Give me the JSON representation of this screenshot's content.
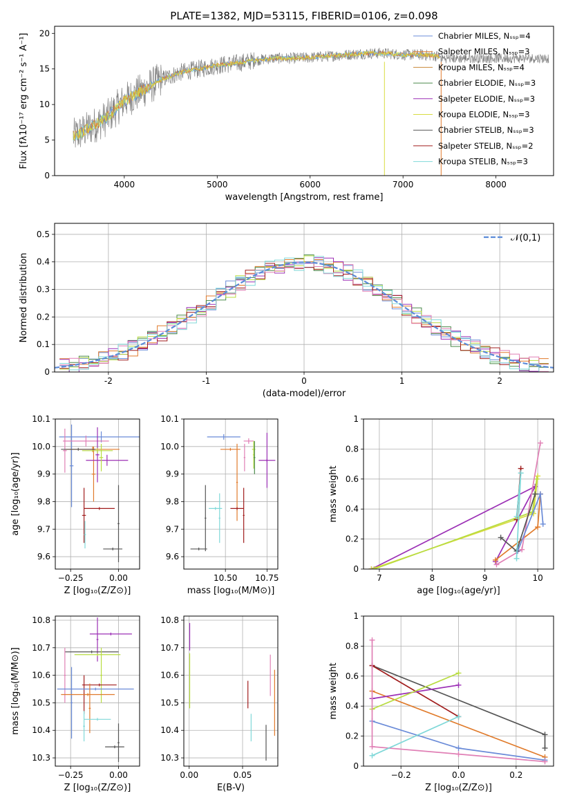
{
  "title": "PLATE=1382, MJD=53115, FIBERID=0106, z=0.098",
  "colors": {
    "Chabrier MILES": "#6a8bd8",
    "Salpeter MILES": "#e07a2a",
    "Kroupa MILES": "#c8883a",
    "Chabrier ELODIE": "#4a8a4a",
    "Salpeter ELODIE": "#9b2fb5",
    "Kroupa ELODIE": "#d8dc40",
    "Chabrier STELIB": "#555555",
    "Salpeter STELIB": "#a01c1c",
    "Kroupa STELIB": "#7fd8d8",
    "pink": "#e07fb5",
    "lime": "#b8dc40",
    "gaussian": "#5b8bd8"
  },
  "chart_data": [
    {
      "type": "line",
      "name": "spectrum",
      "xlabel": "wavelength [Angstrom, rest frame]",
      "ylabel": "Flux [fλ10⁻¹⁷ erg cm⁻² s⁻¹ A⁻¹]",
      "xlim": [
        3250,
        8620
      ],
      "ylim": [
        0,
        21
      ],
      "xticks": [
        4000,
        5000,
        6000,
        7000,
        8000
      ],
      "yticks": [
        0,
        5,
        10,
        15,
        20
      ],
      "grid": false,
      "legend_position": "top-right",
      "legend": [
        "Chabrier MILES, Nₛₛₚ=4",
        "Salpeter MILES, Nₛₛₚ=3",
        "Kroupa MILES, Nₛₛₚ=4",
        "Chabrier ELODIE, Nₛₛₚ=3",
        "Salpeter ELODIE, Nₛₛₚ=3",
        "Kroupa ELODIE, Nₛₛₚ=3",
        "Chabrier STELIB, Nₛₛₚ=3",
        "Salpeter STELIB, Nₛₛₚ=2",
        "Kroupa STELIB, Nₛₛₚ=3"
      ],
      "continuum": {
        "x": [
          3450,
          3600,
          3800,
          4000,
          4200,
          4400,
          4600,
          4800,
          5000,
          5200,
          5400,
          5600,
          5800,
          6000,
          6200,
          6400,
          6600,
          6800,
          7000,
          7200,
          7400
        ],
        "y": [
          5.5,
          6.5,
          8.0,
          10.5,
          12.0,
          13.5,
          14.5,
          15.0,
          15.5,
          15.8,
          16.2,
          16.5,
          16.5,
          16.6,
          16.8,
          17.0,
          17.2,
          17.2,
          17.0,
          17.0,
          16.8
        ]
      }
    },
    {
      "type": "bar",
      "name": "residuals",
      "xlabel": "(data-model)/error",
      "ylabel": "Normed distribution",
      "xlim": [
        -2.55,
        2.55
      ],
      "ylim": [
        0,
        0.54
      ],
      "xticks": [
        -2,
        -1,
        0,
        1,
        2
      ],
      "yticks": [
        0.0,
        0.1,
        0.2,
        0.3,
        0.4,
        0.5
      ],
      "grid": true,
      "legend_position": "top-right",
      "legend": [
        "𝒩(0,1)"
      ],
      "bin_width": 0.1,
      "bin_range": [
        -2.5,
        2.5
      ]
    },
    {
      "type": "scatter",
      "name": "age-vs-Z",
      "xlabel": "Z [log₁₀(Z/Z⊙)]",
      "ylabel": "age  [log₁₀(age/yr)]",
      "xlim": [
        -0.33,
        0.11
      ],
      "ylim": [
        9.555,
        10.1
      ],
      "xticks": [
        -0.25,
        0.0
      ],
      "xticklabels": [
        "−0.25",
        "0.00"
      ],
      "yticks": [
        9.6,
        9.7,
        9.8,
        9.9,
        10.0,
        10.1
      ],
      "yticklabels": [
        "9.6",
        "9.7",
        "9.8",
        "9.9",
        "10.0",
        "10.1"
      ],
      "grid": true,
      "points": [
        {
          "series": "Chabrier MILES",
          "x": -0.09,
          "xerr": 0.22,
          "y": 10.035,
          "yerr": 0.02
        },
        {
          "series": "Chabrier MILES",
          "x": -0.245,
          "xerr": 0.01,
          "y": 9.93,
          "yerr": 0.15
        },
        {
          "series": "pink",
          "x": -0.17,
          "xerr": 0.12,
          "y": 10.02,
          "yerr": 0.02
        },
        {
          "series": "pink",
          "x": -0.28,
          "xerr": 0.01,
          "y": 9.985,
          "yerr": 0.08
        },
        {
          "series": "Salpeter MILES",
          "x": -0.135,
          "xerr": 0.14,
          "y": 9.99,
          "yerr": 0.01
        },
        {
          "series": "Salpeter MILES",
          "x": -0.13,
          "xerr": 0.01,
          "y": 9.9,
          "yerr": 0.1
        },
        {
          "series": "Chabrier STELIB",
          "x": -0.21,
          "xerr": 0.09,
          "y": 9.99,
          "yerr": 0.005
        },
        {
          "series": "Salpeter ELODIE",
          "x": -0.06,
          "xerr": 0.11,
          "y": 9.95,
          "yerr": 0.02
        },
        {
          "series": "Salpeter ELODIE",
          "x": -0.11,
          "xerr": 0.01,
          "y": 9.97,
          "yerr": 0.1
        },
        {
          "series": "lime",
          "x": -0.11,
          "xerr": 0.08,
          "y": 9.985,
          "yerr": 0.01
        },
        {
          "series": "lime",
          "x": -0.09,
          "xerr": 0.01,
          "y": 9.96,
          "yerr": 0.05
        },
        {
          "series": "Salpeter STELIB",
          "x": -0.1,
          "xerr": 0.08,
          "y": 9.775,
          "yerr": 0.005
        },
        {
          "series": "Salpeter STELIB",
          "x": -0.18,
          "xerr": 0.01,
          "y": 9.75,
          "yerr": 0.1
        },
        {
          "series": "Chabrier STELIB",
          "x": -0.03,
          "xerr": 0.05,
          "y": 9.628,
          "yerr": 0.005
        },
        {
          "series": "Chabrier STELIB",
          "x": 0.0,
          "xerr": 0.005,
          "y": 9.72,
          "yerr": 0.14
        },
        {
          "series": "Kroupa STELIB",
          "x": -0.175,
          "xerr": 0.005,
          "y": 9.68,
          "yerr": 0.05
        }
      ]
    },
    {
      "type": "scatter",
      "name": "age-vs-mass",
      "xlabel": "mass [log₁₀(M/M⊙)]",
      "ylabel": "",
      "xlim": [
        10.25,
        10.815
      ],
      "ylim": [
        9.555,
        10.1
      ],
      "xticks": [
        10.5,
        10.75
      ],
      "xticklabels": [
        "10.50",
        "10.75"
      ],
      "yticks": [
        9.6,
        9.7,
        9.8,
        9.9,
        10.0,
        10.1
      ],
      "yticklabels": [
        "9.6",
        "9.7",
        "9.8",
        "9.9",
        "10.0",
        "10.1"
      ],
      "grid": true,
      "points": [
        {
          "series": "Chabrier MILES",
          "x": 10.49,
          "xerr": 0.1,
          "y": 10.035,
          "yerr": 0.01
        },
        {
          "series": "Salpeter MILES",
          "x": 10.53,
          "xerr": 0.06,
          "y": 9.99,
          "yerr": 0.005
        },
        {
          "series": "Salpeter MILES",
          "x": 10.57,
          "xerr": 0.005,
          "y": 9.87,
          "yerr": 0.14
        },
        {
          "series": "pink",
          "x": 10.64,
          "xerr": 0.03,
          "y": 10.02,
          "yerr": 0.01
        },
        {
          "series": "pink",
          "x": 10.615,
          "xerr": 0.005,
          "y": 9.96,
          "yerr": 0.05
        },
        {
          "series": "lime",
          "x": 10.67,
          "xerr": 0.01,
          "y": 9.99,
          "yerr": 0.005
        },
        {
          "series": "lime",
          "x": 10.67,
          "xerr": 0.005,
          "y": 9.97,
          "yerr": 0.05
        },
        {
          "series": "Chabrier ELODIE",
          "x": 10.675,
          "xerr": 0.005,
          "y": 9.96,
          "yerr": 0.06
        },
        {
          "series": "Salpeter ELODIE",
          "x": 10.75,
          "xerr": 0.05,
          "y": 9.95,
          "yerr": 0.005
        },
        {
          "series": "Salpeter ELODIE",
          "x": 10.75,
          "xerr": 0.005,
          "y": 9.95,
          "yerr": 0.1
        },
        {
          "series": "Salpeter STELIB",
          "x": 10.57,
          "xerr": 0.04,
          "y": 9.775,
          "yerr": 0.005
        },
        {
          "series": "Salpeter STELIB",
          "x": 10.61,
          "xerr": 0.005,
          "y": 9.75,
          "yerr": 0.1
        },
        {
          "series": "Chabrier STELIB",
          "x": 10.34,
          "xerr": 0.05,
          "y": 9.628,
          "yerr": 0.005
        },
        {
          "series": "Chabrier STELIB",
          "x": 10.38,
          "xerr": 0.005,
          "y": 9.74,
          "yerr": 0.12
        },
        {
          "series": "Kroupa STELIB",
          "x": 10.44,
          "xerr": 0.04,
          "y": 9.775,
          "yerr": 0.005
        },
        {
          "series": "Kroupa STELIB",
          "x": 10.465,
          "xerr": 0.005,
          "y": 9.74,
          "yerr": 0.09
        }
      ]
    },
    {
      "type": "line",
      "name": "mass-weight-vs-age",
      "xlabel": "age  [log₁₀(age/yr)]",
      "ylabel": "mass weight",
      "xlim": [
        6.7,
        10.3
      ],
      "ylim": [
        0,
        1
      ],
      "xticks": [
        7,
        8,
        9,
        10
      ],
      "yticks": [
        0.0,
        0.2,
        0.4,
        0.6,
        0.8,
        1.0
      ],
      "grid": true,
      "series": [
        {
          "series": "Salpeter ELODIE",
          "x": [
            6.85,
            9.95,
            9.2
          ],
          "y": [
            0.0,
            0.55,
            0.05
          ]
        },
        {
          "series": "Kroupa ELODIE",
          "x": [
            6.85,
            9.92,
            10.0
          ],
          "y": [
            0.0,
            0.37,
            0.62
          ]
        },
        {
          "series": "lime",
          "x": [
            6.9,
            9.9,
            9.98
          ],
          "y": [
            0.0,
            0.38,
            0.6
          ]
        },
        {
          "series": "Salpeter MILES",
          "x": [
            9.2,
            10.0,
            10.05
          ],
          "y": [
            0.06,
            0.28,
            0.5
          ]
        },
        {
          "series": "pink",
          "x": [
            9.22,
            9.7,
            10.05
          ],
          "y": [
            0.03,
            0.13,
            0.84
          ]
        },
        {
          "series": "Chabrier MILES",
          "x": [
            9.62,
            10.05,
            10.1
          ],
          "y": [
            0.12,
            0.5,
            0.3
          ]
        },
        {
          "series": "Salpeter STELIB",
          "x": [
            9.6,
            9.68
          ],
          "y": [
            0.33,
            0.67
          ]
        },
        {
          "series": "Chabrier STELIB",
          "x": [
            9.3,
            9.6,
            9.95
          ],
          "y": [
            0.21,
            0.12,
            0.5
          ]
        },
        {
          "series": "Kroupa STELIB",
          "x": [
            9.6,
            9.68,
            9.6
          ],
          "y": [
            0.07,
            0.64,
            0.35
          ]
        }
      ]
    },
    {
      "type": "scatter",
      "name": "mass-vs-Z",
      "xlabel": "Z [log₁₀(Z/Z⊙)]",
      "ylabel": "mass [log₁₀(M/M⊙)]",
      "xlim": [
        -0.33,
        0.11
      ],
      "ylim": [
        10.27,
        10.815
      ],
      "xticks": [
        -0.25,
        0.0
      ],
      "xticklabels": [
        "−0.25",
        "0.00"
      ],
      "yticks": [
        10.3,
        10.4,
        10.5,
        10.6,
        10.7,
        10.8
      ],
      "yticklabels": [
        "10.3",
        "10.4",
        "10.5",
        "10.6",
        "10.7",
        "10.8"
      ],
      "grid": true,
      "points": [
        {
          "series": "Salpeter ELODIE",
          "x": -0.04,
          "xerr": 0.11,
          "y": 10.75,
          "yerr": 0.005
        },
        {
          "series": "Salpeter ELODIE",
          "x": -0.11,
          "xerr": 0.005,
          "y": 10.73,
          "yerr": 0.08
        },
        {
          "series": "Chabrier STELIB",
          "x": -0.14,
          "xerr": 0.14,
          "y": 10.685,
          "yerr": 0.005
        },
        {
          "series": "lime",
          "x": -0.11,
          "xerr": 0.12,
          "y": 10.675,
          "yerr": 0.005
        },
        {
          "series": "lime",
          "x": -0.09,
          "xerr": 0.005,
          "y": 10.6,
          "yerr": 0.1
        },
        {
          "series": "pink",
          "x": -0.28,
          "xerr": 0.005,
          "y": 10.6,
          "yerr": 0.1
        },
        {
          "series": "Salpeter STELIB",
          "x": -0.1,
          "xerr": 0.09,
          "y": 10.565,
          "yerr": 0.005
        },
        {
          "series": "Salpeter STELIB",
          "x": -0.18,
          "xerr": 0.005,
          "y": 10.53,
          "yerr": 0.07
        },
        {
          "series": "Chabrier MILES",
          "x": -0.12,
          "xerr": 0.2,
          "y": 10.55,
          "yerr": 0.005
        },
        {
          "series": "Chabrier MILES",
          "x": -0.245,
          "xerr": 0.005,
          "y": 10.5,
          "yerr": 0.13
        },
        {
          "series": "Salpeter MILES",
          "x": -0.16,
          "xerr": 0.14,
          "y": 10.53,
          "yerr": 0.005
        },
        {
          "series": "Salpeter MILES",
          "x": -0.15,
          "xerr": 0.005,
          "y": 10.48,
          "yerr": 0.09
        },
        {
          "series": "Kroupa STELIB",
          "x": -0.11,
          "xerr": 0.07,
          "y": 10.44,
          "yerr": 0.005
        },
        {
          "series": "Kroupa STELIB",
          "x": -0.18,
          "xerr": 0.005,
          "y": 10.415,
          "yerr": 0.055
        },
        {
          "series": "Chabrier STELIB",
          "x": -0.02,
          "xerr": 0.05,
          "y": 10.34,
          "yerr": 0.005
        },
        {
          "series": "Chabrier STELIB",
          "x": 0.0,
          "xerr": 0.005,
          "y": 10.355,
          "yerr": 0.07
        }
      ]
    },
    {
      "type": "scatter",
      "name": "mass-vs-EBV",
      "xlabel": "E(B-V)",
      "ylabel": "",
      "xlim": [
        -0.005,
        0.083
      ],
      "ylim": [
        10.27,
        10.815
      ],
      "xticks": [
        0.0,
        0.05
      ],
      "xticklabels": [
        "0.00",
        "0.05"
      ],
      "yticks": [
        10.3,
        10.4,
        10.5,
        10.6,
        10.7,
        10.8
      ],
      "yticklabels": [
        "10.3",
        "10.4",
        "10.5",
        "10.6",
        "10.7",
        "10.8"
      ],
      "grid": true,
      "points": [
        {
          "series": "Salpeter ELODIE",
          "x": 0.0005,
          "xerr": 0.0,
          "y": 10.74,
          "yerr": 0.05
        },
        {
          "series": "lime",
          "x": 0.0005,
          "xerr": 0.0,
          "y": 10.58,
          "yerr": 0.1
        },
        {
          "series": "Salpeter STELIB",
          "x": 0.055,
          "xerr": 0.0,
          "y": 10.53,
          "yerr": 0.05
        },
        {
          "series": "Kroupa STELIB",
          "x": 0.058,
          "xerr": 0.0,
          "y": 10.41,
          "yerr": 0.05
        },
        {
          "series": "Chabrier STELIB",
          "x": 0.072,
          "xerr": 0.0,
          "y": 10.355,
          "yerr": 0.065
        },
        {
          "series": "pink",
          "x": 0.076,
          "xerr": 0.0,
          "y": 10.6,
          "yerr": 0.075
        },
        {
          "series": "Salpeter MILES",
          "x": 0.08,
          "xerr": 0.0,
          "y": 10.5,
          "yerr": 0.12
        }
      ]
    },
    {
      "type": "line",
      "name": "mass-weight-vs-Z",
      "xlabel": "Z [log₁₀(Z/Z⊙)]",
      "ylabel": "mass weight",
      "xlim": [
        -0.33,
        0.33
      ],
      "ylim": [
        0,
        1
      ],
      "xticks": [
        -0.2,
        0.0,
        0.2
      ],
      "xticklabels": [
        "−0.2",
        "0.0",
        "0.2"
      ],
      "yticks": [
        0.0,
        0.2,
        0.4,
        0.6,
        0.8,
        1.0
      ],
      "grid": true,
      "series": [
        {
          "series": "Chabrier STELIB",
          "x": [
            -0.3,
            0.3,
            0.3
          ],
          "y": [
            0.67,
            0.21,
            0.12
          ]
        },
        {
          "series": "Salpeter STELIB",
          "x": [
            -0.3,
            0.0
          ],
          "y": [
            0.67,
            0.33
          ]
        },
        {
          "series": "Salpeter MILES",
          "x": [
            -0.3,
            0.3
          ],
          "y": [
            0.5,
            0.06
          ]
        },
        {
          "series": "Salpeter ELODIE",
          "x": [
            -0.3,
            0.0
          ],
          "y": [
            0.45,
            0.54
          ]
        },
        {
          "series": "lime",
          "x": [
            -0.3,
            0.0
          ],
          "y": [
            0.38,
            0.62
          ]
        },
        {
          "series": "Chabrier MILES",
          "x": [
            -0.3,
            0.0,
            0.3
          ],
          "y": [
            0.3,
            0.12,
            0.04
          ]
        },
        {
          "series": "pink",
          "x": [
            -0.3,
            -0.3,
            0.0,
            0.3
          ],
          "y": [
            0.84,
            0.13,
            0.08,
            0.03
          ]
        },
        {
          "series": "Kroupa STELIB",
          "x": [
            -0.3,
            0.0
          ],
          "y": [
            0.07,
            0.33
          ]
        }
      ]
    }
  ]
}
